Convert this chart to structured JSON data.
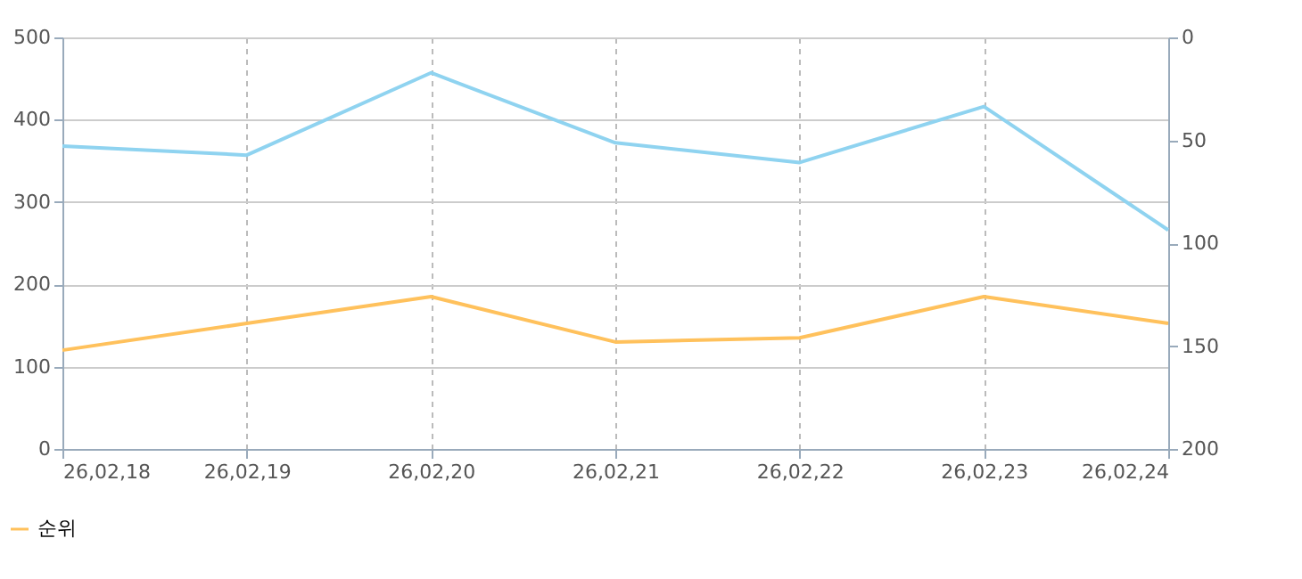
{
  "chart_data": {
    "type": "line",
    "categories": [
      "26,02,18",
      "26,02,19",
      "26,02,20",
      "26,02,21",
      "26,02,22",
      "26,02,23",
      "26,02,24"
    ],
    "series": [
      {
        "color": "#8fd3f0",
        "values": [
          368,
          357,
          457,
          372,
          348,
          416,
          266
        ]
      },
      {
        "name": "순위",
        "color": "#ffc15c",
        "axis": "y2",
        "values": [
          152,
          139,
          126,
          148,
          146,
          126,
          139
        ]
      }
    ],
    "ylim": [
      0,
      500
    ],
    "yticks": [
      0,
      100,
      200,
      300,
      400,
      500
    ],
    "y2lim": [
      200,
      0
    ],
    "y2ticks": [
      0,
      50,
      100,
      150,
      200
    ],
    "grid": true,
    "legend": "bottom left",
    "marker": "none",
    "line_style": "solid"
  }
}
